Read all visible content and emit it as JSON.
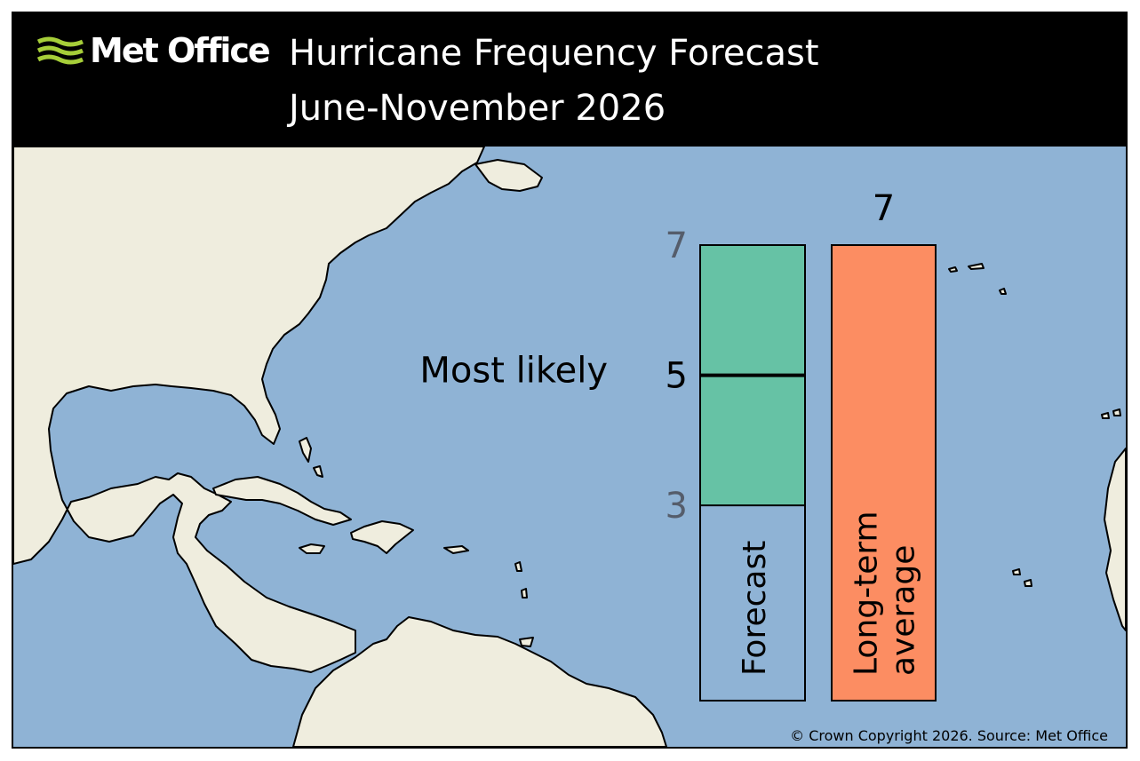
{
  "header": {
    "logo_text": "Met Office",
    "logo_color": "#a6ce39",
    "title_line1": "Hurricane Frequency Forecast",
    "title_line2": "June-November 2026"
  },
  "map": {
    "ocean_color": "#8fb3d5",
    "land_color": "#efedde"
  },
  "chart_data": {
    "type": "bar",
    "ylim": [
      0,
      7
    ],
    "forecast": {
      "label": "Forecast",
      "range": [
        3,
        7
      ],
      "range_labels": [
        "3",
        "7"
      ],
      "most_likely": 5,
      "most_likely_label": "5",
      "annotation": "Most likely",
      "range_color": "#66c2a5"
    },
    "long_term_average": {
      "label_lines": [
        "Long-term",
        "average"
      ],
      "value": 7,
      "value_label": "7",
      "color": "#fc8d62"
    },
    "tick_label_color": "#555d6b"
  },
  "footer": {
    "copyright": "© Crown Copyright 2026. Source: Met Office"
  }
}
